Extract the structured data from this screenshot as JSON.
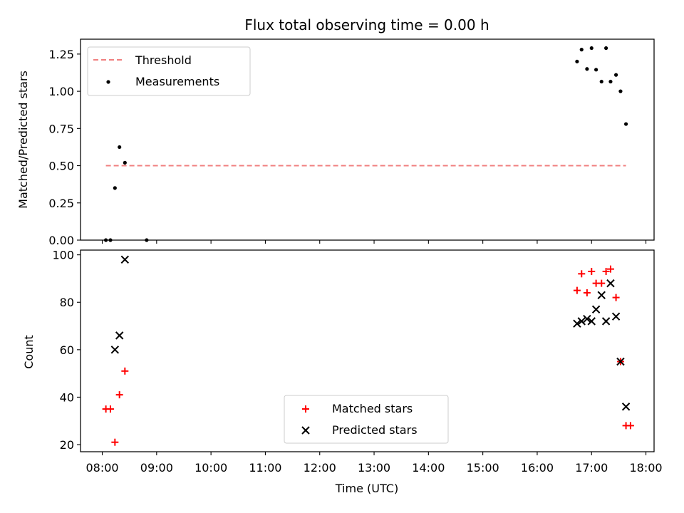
{
  "title": "Flux total observing time = 0.00 h",
  "xlabel": "Time (UTC)",
  "x_ticks": [
    "08:00",
    "09:00",
    "10:00",
    "11:00",
    "12:00",
    "13:00",
    "14:00",
    "15:00",
    "16:00",
    "17:00",
    "18:00"
  ],
  "chart_data": [
    {
      "type": "scatter",
      "ylabel": "Matched/Predicted stars",
      "xlim_hours": [
        7.6,
        18.15
      ],
      "ylim": [
        0,
        1.35
      ],
      "y_ticks": [
        "0.00",
        "0.25",
        "0.50",
        "0.75",
        "1.00",
        "1.25"
      ],
      "grid": false,
      "legend_position": "upper-left",
      "threshold": {
        "name": "Threshold",
        "color": "#f08080",
        "y": 0.5,
        "x_start": "08:04",
        "x_end": "17:38"
      },
      "series": [
        {
          "name": "Measurements",
          "marker": "dot",
          "color": "#000000",
          "x": [
            "08:04",
            "08:09",
            "08:14",
            "08:19",
            "08:25",
            "08:49",
            "16:44",
            "16:49",
            "16:55",
            "17:00",
            "17:05",
            "17:11",
            "17:16",
            "17:21",
            "17:27",
            "17:32",
            "17:38"
          ],
          "y": [
            0.0,
            0.0,
            0.35,
            0.625,
            0.52,
            0.0,
            1.2,
            1.28,
            1.15,
            1.29,
            1.145,
            1.065,
            1.29,
            1.065,
            1.11,
            1.0,
            0.78
          ]
        }
      ]
    },
    {
      "type": "scatter",
      "ylabel": "Count",
      "xlim_hours": [
        7.6,
        18.15
      ],
      "ylim": [
        17,
        102
      ],
      "y_ticks": [
        "20",
        "40",
        "60",
        "80",
        "100"
      ],
      "grid": false,
      "legend_position": "lower-center",
      "series": [
        {
          "name": "Matched stars",
          "marker": "plus",
          "color": "#ff0000",
          "x": [
            "08:04",
            "08:09",
            "08:14",
            "08:19",
            "08:25",
            "16:44",
            "16:49",
            "16:55",
            "17:00",
            "17:05",
            "17:11",
            "17:16",
            "17:21",
            "17:27",
            "17:32",
            "17:38",
            "17:43"
          ],
          "y": [
            35,
            35,
            21,
            41,
            51,
            85,
            92,
            84,
            93,
            88,
            88,
            93,
            94,
            82,
            55,
            28,
            28
          ]
        },
        {
          "name": "Predicted stars",
          "marker": "x",
          "color": "#000000",
          "x": [
            "08:14",
            "08:19",
            "08:25",
            "16:44",
            "16:49",
            "16:55",
            "17:00",
            "17:05",
            "17:11",
            "17:16",
            "17:21",
            "17:27",
            "17:32",
            "17:38"
          ],
          "y": [
            60,
            66,
            98,
            71,
            72,
            73,
            72,
            77,
            83,
            72,
            88,
            74,
            55,
            36
          ]
        }
      ]
    }
  ]
}
